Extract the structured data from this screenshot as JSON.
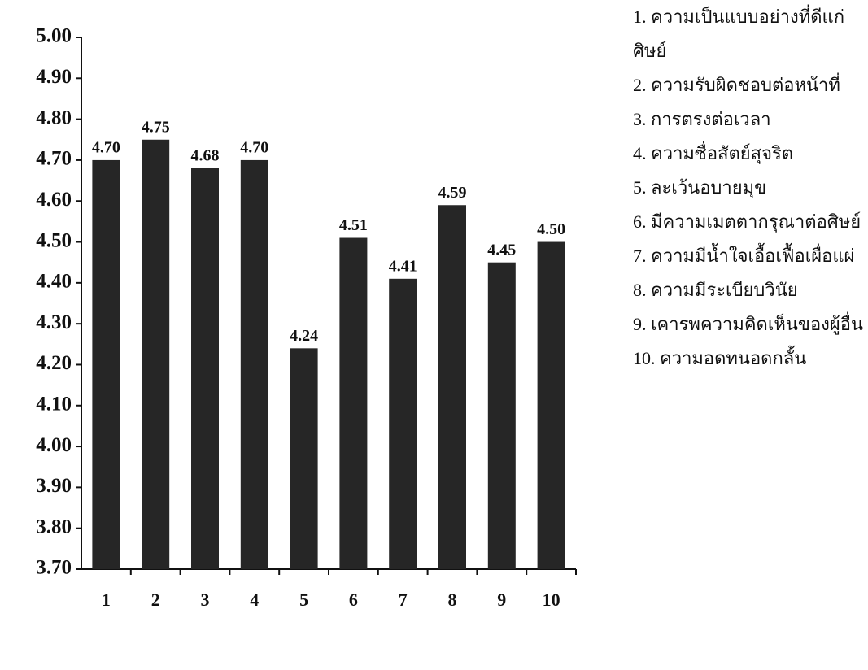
{
  "chart_data": {
    "type": "bar",
    "categories": [
      "1",
      "2",
      "3",
      "4",
      "5",
      "6",
      "7",
      "8",
      "9",
      "10"
    ],
    "values": [
      4.7,
      4.75,
      4.68,
      4.7,
      4.24,
      4.51,
      4.41,
      4.59,
      4.45,
      4.5
    ],
    "value_labels": [
      "4.70",
      "4.75",
      "4.68",
      "4.70",
      "4.24",
      "4.51",
      "4.41",
      "4.59",
      "4.45",
      "4.50"
    ],
    "color": "#262626",
    "ylim": [
      3.7,
      5.0
    ],
    "yticks": [
      {
        "value": 3.7,
        "label": "3.70"
      },
      {
        "value": 3.8,
        "label": "3.80"
      },
      {
        "value": 3.9,
        "label": "3.90"
      },
      {
        "value": 4.0,
        "label": "4.00"
      },
      {
        "value": 4.1,
        "label": "4.10"
      },
      {
        "value": 4.2,
        "label": "4.20"
      },
      {
        "value": 4.3,
        "label": "4.30"
      },
      {
        "value": 4.4,
        "label": "4.40"
      },
      {
        "value": 4.5,
        "label": "4.50"
      },
      {
        "value": 4.6,
        "label": "4.60"
      },
      {
        "value": 4.7,
        "label": "4.70"
      },
      {
        "value": 4.8,
        "label": "4.80"
      },
      {
        "value": 4.9,
        "label": "4.90"
      },
      {
        "value": 5.0,
        "label": "5.00"
      }
    ],
    "grid": false,
    "legend_items": [
      "1.  ความเป็นแบบอย่างที่ดีแก่ศิษย์",
      "2.  ความรับผิดชอบต่อหน้าที่",
      "3. การตรงต่อเวลา",
      "4. ความซื่อสัตย์สุจริต",
      "5. ละเว้นอบายมุข",
      "6.  มีความเมตตากรุณาต่อศิษย์",
      "7.  ความมีน้ำใจเอื้อเฟื้อเผื่อแผ่",
      "8. ความมีระเบียบวินัย",
      "9.  เคารพความคิดเห็นของผู้อื่น",
      "10. ความอดทนอดกลั้น"
    ]
  }
}
